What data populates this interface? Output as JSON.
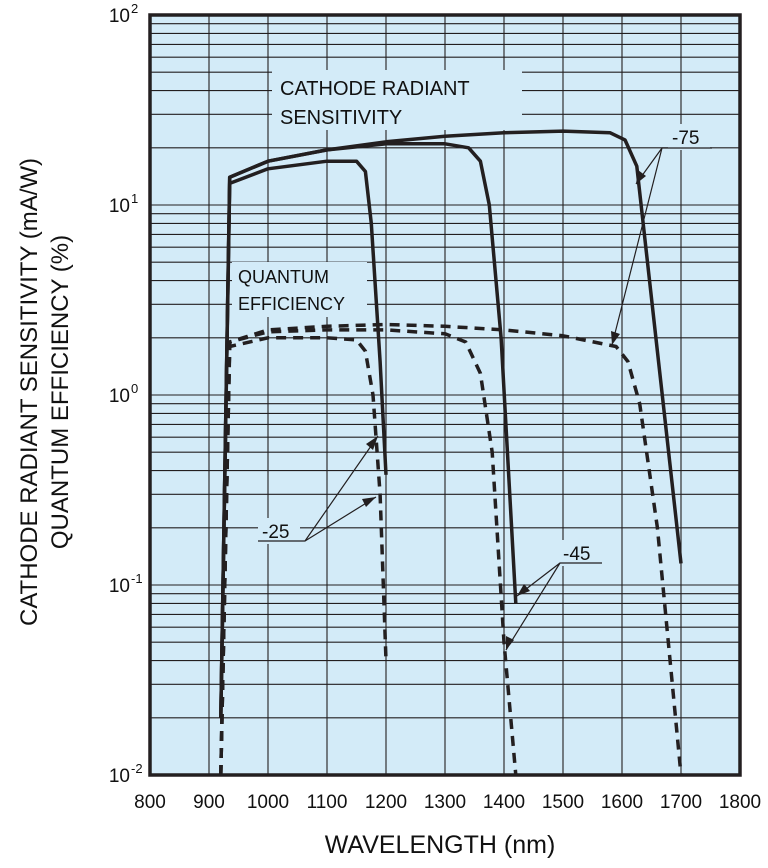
{
  "chart_data": {
    "type": "line",
    "xlabel": "WAVELENGTH (nm)",
    "ylabel_lines": [
      "CATHODE RADIANT SENSITIVITY (mA/W)",
      "QUANTUM EFFICIENCY (%)"
    ],
    "xlim": [
      800,
      1800
    ],
    "ylim": [
      0.01,
      100
    ],
    "y_scale": "log",
    "grid": true,
    "background_color": "#d3ebf8",
    "line_color": "#231f20",
    "x_ticks": [
      "800",
      "900",
      "1000",
      "1100",
      "1200",
      "1300",
      "1400",
      "1500",
      "1600",
      "1700",
      "1800"
    ],
    "y_ticks": [
      {
        "base": "10",
        "exp": "-2",
        "value": 0.01
      },
      {
        "base": "10",
        "exp": "-1",
        "value": 0.1
      },
      {
        "base": "10",
        "exp": "0",
        "value": 1
      },
      {
        "base": "10",
        "exp": "1",
        "value": 10
      },
      {
        "base": "10",
        "exp": "2",
        "value": 100
      }
    ],
    "annotations": {
      "radiant_line1": "CATHODE RADIANT",
      "radiant_line2": "SENSITIVITY",
      "qe_line1": "QUANTUM",
      "qe_line2": "EFFICIENCY",
      "t75": "-75",
      "t45": "-45",
      "t25": "-25"
    },
    "series": [
      {
        "group": "radiant",
        "label": "-75",
        "style": "solid",
        "x": [
          920,
          935,
          1000,
          1100,
          1200,
          1300,
          1400,
          1500,
          1580,
          1605,
          1625,
          1700
        ],
        "y": [
          0.02,
          14,
          17,
          19.5,
          21.5,
          23,
          24,
          24.5,
          24,
          22,
          16,
          0.13
        ]
      },
      {
        "group": "radiant",
        "label": "-45",
        "style": "solid",
        "x": [
          920,
          935,
          1000,
          1100,
          1200,
          1300,
          1340,
          1360,
          1375,
          1395,
          1420
        ],
        "y": [
          0.02,
          14,
          17,
          19.5,
          21,
          21,
          20,
          17,
          10,
          2,
          0.08
        ]
      },
      {
        "group": "radiant",
        "label": "-25",
        "style": "solid",
        "x": [
          920,
          935,
          1000,
          1100,
          1150,
          1165,
          1175,
          1190,
          1200
        ],
        "y": [
          0.02,
          13,
          15.5,
          17,
          17,
          15,
          8,
          1.5,
          0.38
        ]
      },
      {
        "group": "qe",
        "label": "-75",
        "style": "dashed",
        "x": [
          920,
          935,
          1000,
          1100,
          1200,
          1300,
          1400,
          1500,
          1590,
          1610,
          1630,
          1660,
          1700
        ],
        "y": [
          0.01,
          1.9,
          2.2,
          2.3,
          2.35,
          2.3,
          2.2,
          2.05,
          1.8,
          1.5,
          0.9,
          0.2,
          0.01
        ]
      },
      {
        "group": "qe",
        "label": "-45",
        "style": "dashed",
        "x": [
          920,
          935,
          1000,
          1100,
          1200,
          1300,
          1335,
          1360,
          1380,
          1400,
          1420
        ],
        "y": [
          0.01,
          1.9,
          2.15,
          2.2,
          2.2,
          2.1,
          1.9,
          1.3,
          0.5,
          0.05,
          0.01
        ]
      },
      {
        "group": "qe",
        "label": "-25",
        "style": "dashed",
        "x": [
          920,
          935,
          1000,
          1100,
          1150,
          1165,
          1178,
          1190,
          1200
        ],
        "y": [
          0.01,
          1.8,
          2.0,
          2.0,
          1.95,
          1.7,
          1.0,
          0.3,
          0.04
        ]
      }
    ]
  }
}
